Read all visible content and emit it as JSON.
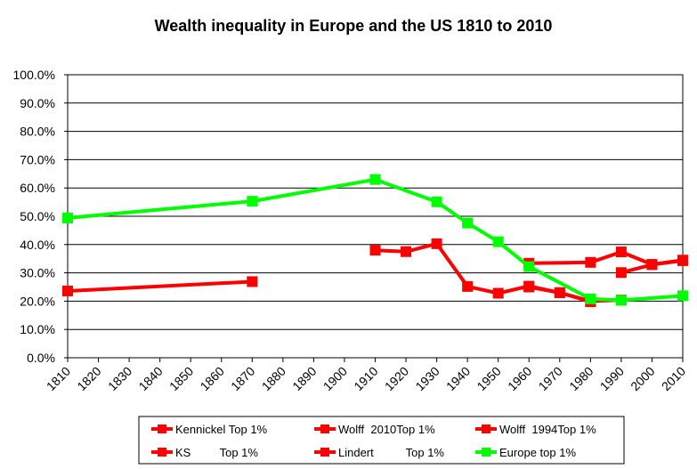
{
  "chart_data": {
    "type": "line",
    "title": "Wealth inequality  in Europe and the US  1810 to 2010",
    "xlabel": "",
    "ylabel": "",
    "xlim": [
      1810,
      2010
    ],
    "ylim": [
      0,
      100
    ],
    "x_ticks": [
      1810,
      1820,
      1830,
      1840,
      1850,
      1860,
      1870,
      1880,
      1890,
      1900,
      1910,
      1920,
      1930,
      1940,
      1950,
      1960,
      1970,
      1980,
      1990,
      2000,
      2010
    ],
    "y_ticks": [
      "0.0%",
      "10.0%",
      "20.0%",
      "30.0%",
      "40.0%",
      "50.0%",
      "60.0%",
      "70.0%",
      "80.0%",
      "90.0%",
      "100.0%"
    ],
    "grid": true,
    "legend_position": "bottom",
    "series": [
      {
        "name": "Kennickel Top 1%",
        "color": "#ff0000",
        "key": "kennickel",
        "x": [
          1990,
          2000,
          2010
        ],
        "y": [
          30.1,
          32.9,
          34.3
        ]
      },
      {
        "name": "Wolff  2010Top 1%",
        "color": "#ff0000",
        "key": "wolff2010",
        "x": [
          1960,
          1980,
          1990,
          2000,
          2010
        ],
        "y": [
          33.4,
          33.7,
          37.4,
          33.0,
          34.5
        ]
      },
      {
        "name": "Wolff  1994Top 1%",
        "color": "#ff0000",
        "key": "wolff1994",
        "x": [
          1960,
          1970,
          1980,
          1990
        ],
        "y": [
          25.0,
          23.0,
          20.0,
          20.4
        ]
      },
      {
        "name": "KS         Top 1%",
        "color": "#ff0000",
        "key": "ks",
        "x": [
          1910,
          1920,
          1930,
          1940,
          1950,
          1960,
          1970,
          1980
        ],
        "y": [
          38.0,
          37.5,
          40.3,
          25.2,
          22.8,
          25.3,
          23.0,
          19.8
        ]
      },
      {
        "name": "Lindert          Top 1%",
        "color": "#ff0000",
        "key": "lindert",
        "x": [
          1810,
          1870
        ],
        "y": [
          23.6,
          26.9
        ]
      },
      {
        "name": "Europe top 1%",
        "color": "#00ff00",
        "key": "europe",
        "x": [
          1810,
          1870,
          1910,
          1930,
          1940,
          1950,
          1960,
          1980,
          1990,
          2010
        ],
        "y": [
          49.4,
          55.3,
          63.0,
          55.1,
          47.6,
          41.0,
          32.2,
          20.8,
          20.3,
          21.9
        ]
      }
    ]
  }
}
